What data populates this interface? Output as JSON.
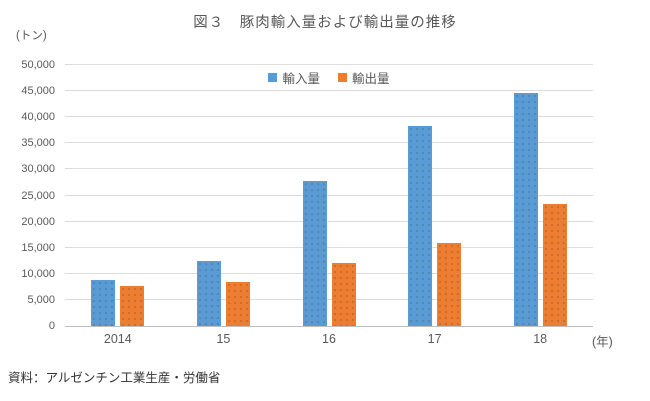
{
  "title": "図３　豚肉輸入量および輸出量の推移",
  "unit_label": "(トン)",
  "year_label": "(年)",
  "source": "資料：アルゼンチン工業生産・労働省",
  "chart_data": {
    "type": "bar",
    "title": "図３　豚肉輸入量および輸出量の推移",
    "ylabel": "(トン)",
    "xlabel": "(年)",
    "categories": [
      "2014",
      "15",
      "16",
      "17",
      "18"
    ],
    "series": [
      {
        "key": "import",
        "name": "輸入量",
        "color": "#5B9BD5",
        "values": [
          8900,
          12500,
          27700,
          38400,
          44600
        ]
      },
      {
        "key": "export",
        "name": "輸出量",
        "color": "#ED7D31",
        "values": [
          7700,
          8400,
          12100,
          15900,
          23300
        ]
      }
    ],
    "ylim": [
      0,
      50000
    ],
    "ytick_step": 5000,
    "grid": true,
    "legend_position": "top-center"
  }
}
